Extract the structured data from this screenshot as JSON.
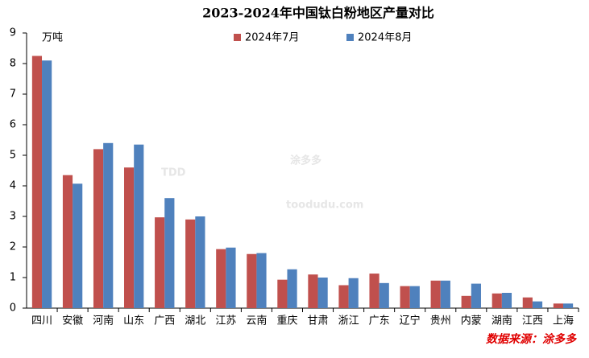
{
  "chart_data": {
    "type": "bar",
    "title": "2023-2024年中国钛白粉地区产量对比",
    "unit_label": "万吨",
    "source": "数据来源：涂多多",
    "watermark": [
      "TDD",
      "涂多多",
      "toodudu.com"
    ],
    "categories": [
      "四川",
      "安徽",
      "河南",
      "山东",
      "广西",
      "湖北",
      "江苏",
      "云南",
      "重庆",
      "甘肃",
      "浙江",
      "广东",
      "辽宁",
      "贵州",
      "内蒙",
      "湖南",
      "江西",
      "上海"
    ],
    "series": [
      {
        "name": "2024年7月",
        "color": "#c0504d",
        "values": [
          8.25,
          4.35,
          5.2,
          4.6,
          2.97,
          2.9,
          1.93,
          1.77,
          0.93,
          1.1,
          0.75,
          1.13,
          0.72,
          0.9,
          0.4,
          0.48,
          0.35,
          0.15
        ]
      },
      {
        "name": "2024年8月",
        "color": "#4f81bd",
        "values": [
          8.1,
          4.07,
          5.4,
          5.35,
          3.6,
          3.0,
          1.98,
          1.8,
          1.27,
          1.0,
          0.98,
          0.82,
          0.72,
          0.9,
          0.8,
          0.5,
          0.22,
          0.15
        ]
      }
    ],
    "ylim": [
      0,
      9
    ],
    "yticks": [
      0,
      1,
      2,
      3,
      4,
      5,
      6,
      7,
      8,
      9
    ],
    "grid": false,
    "legend": "top"
  }
}
